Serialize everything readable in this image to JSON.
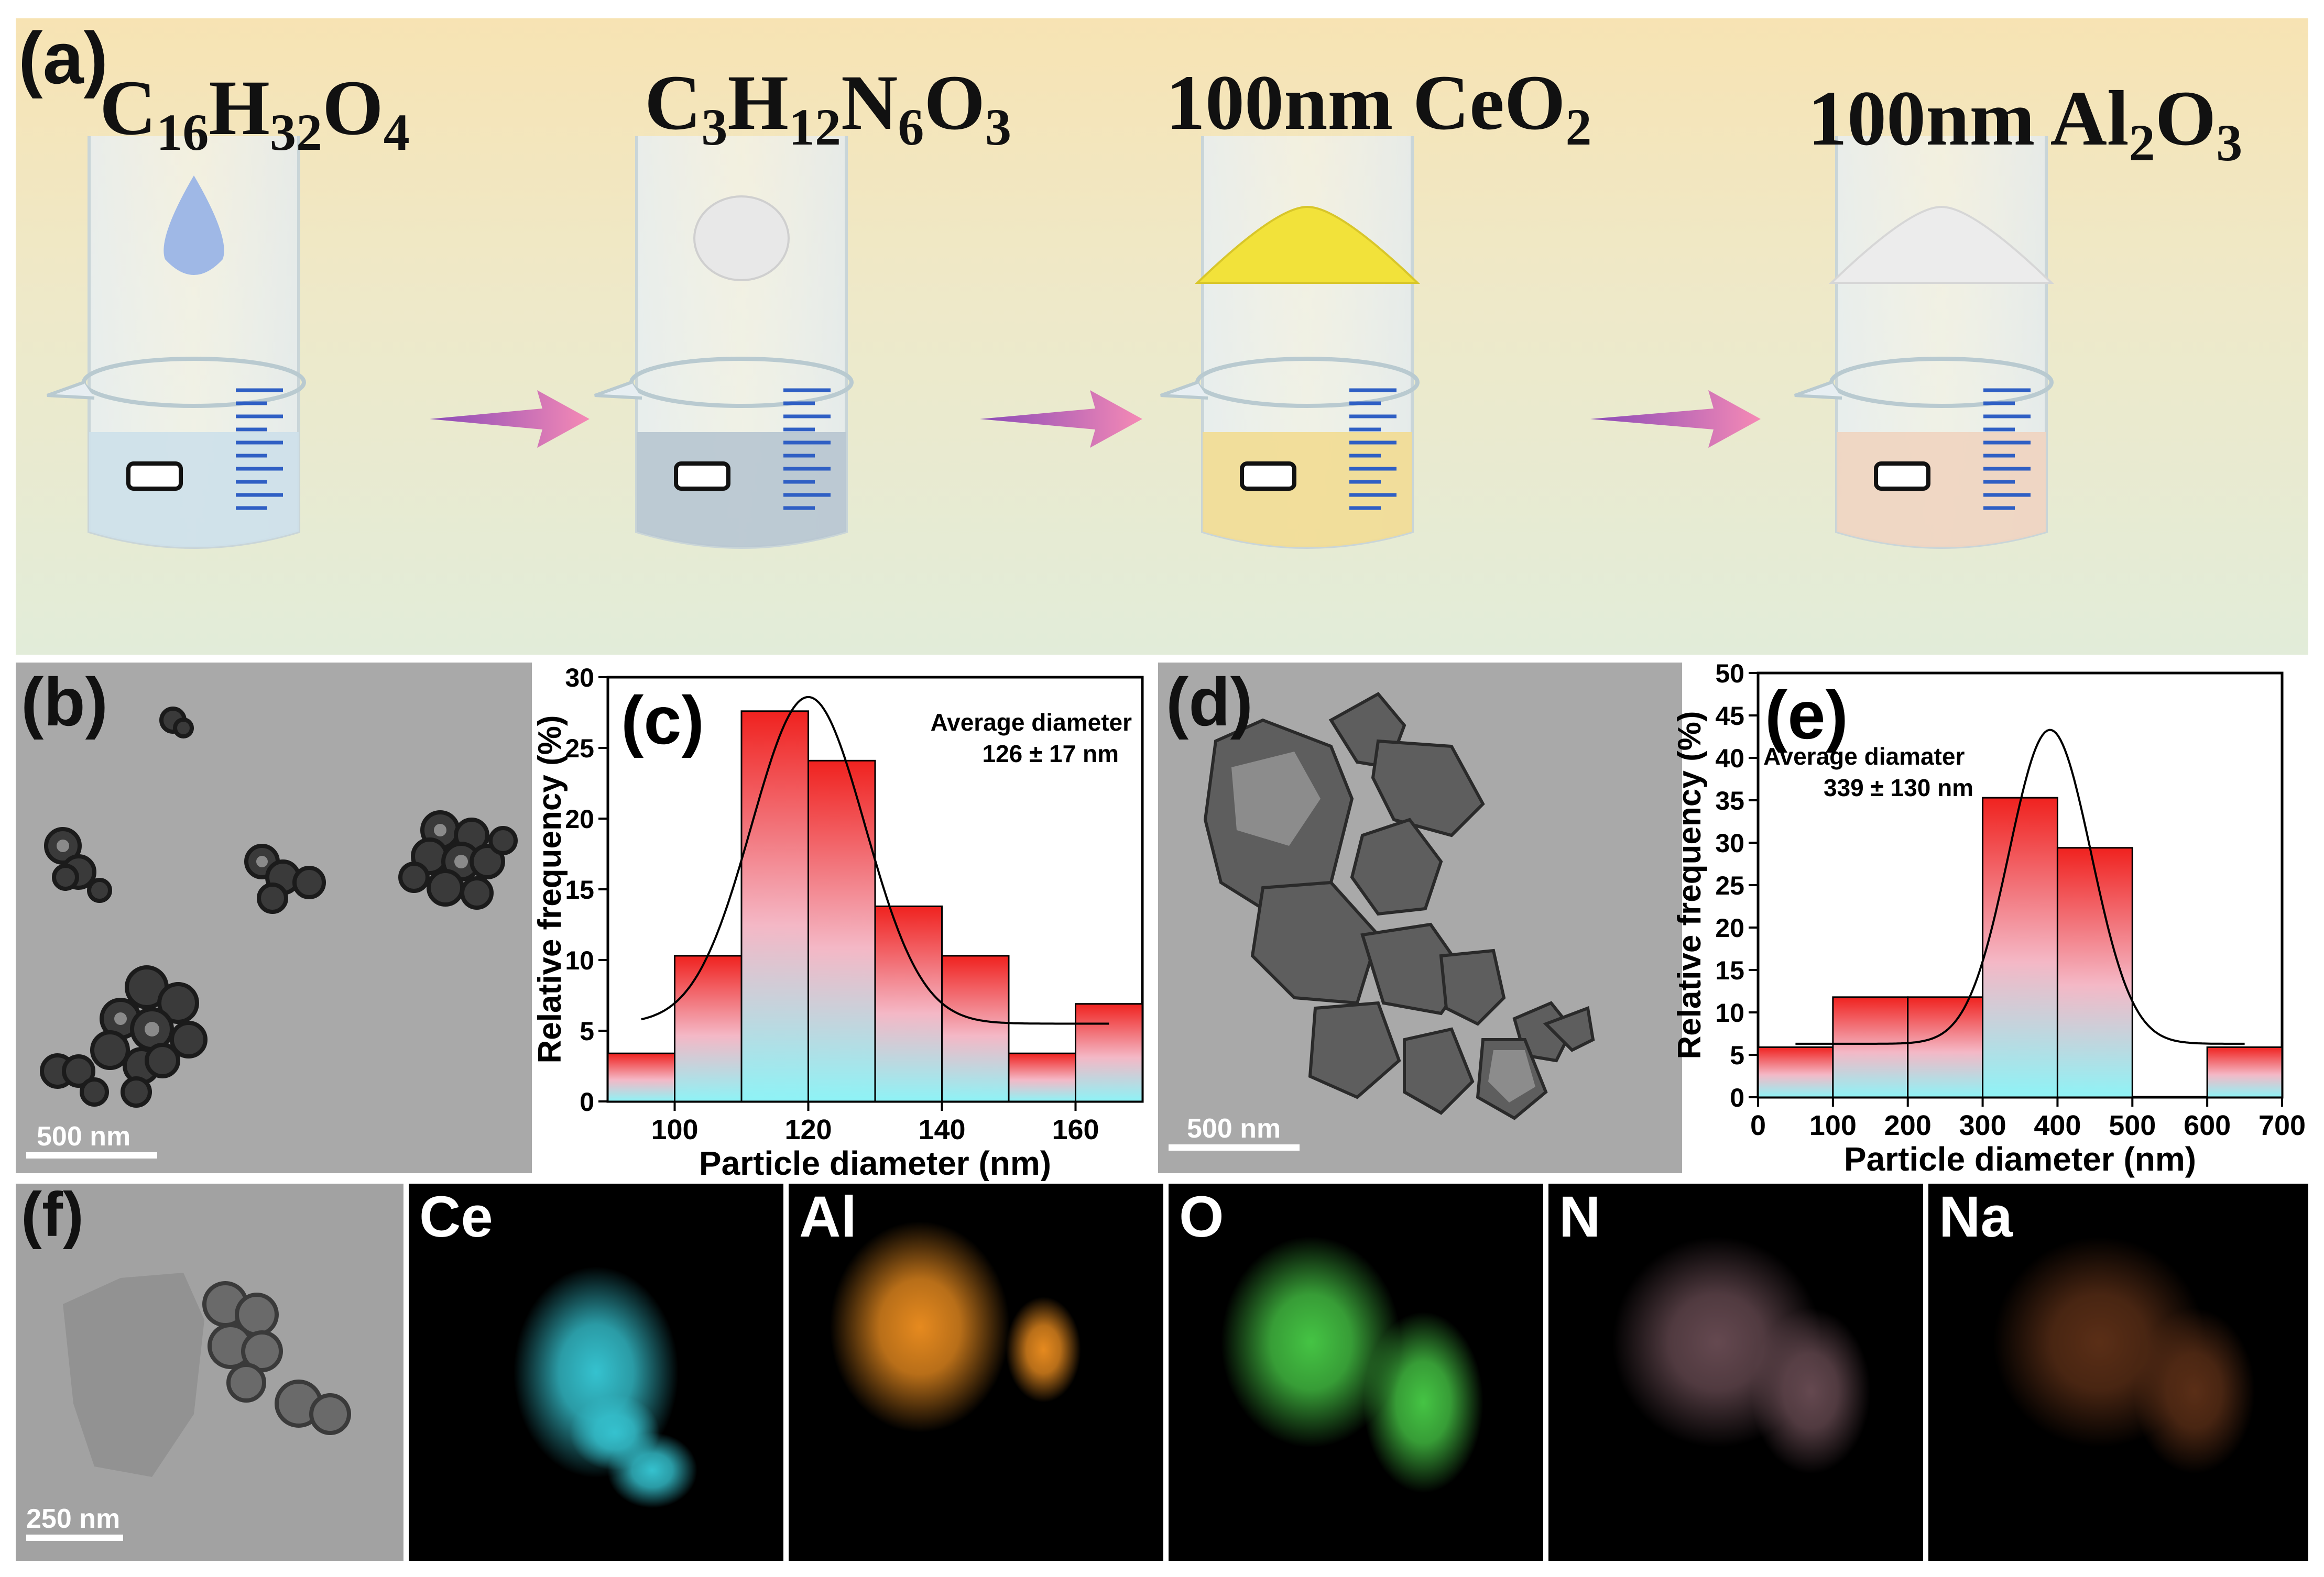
{
  "panel_a": {
    "label": "(a)",
    "steps": [
      {
        "main": "C",
        "parts": [
          [
            "16",
            "sub"
          ],
          [
            "H",
            ""
          ],
          [
            "32",
            "sub"
          ],
          [
            "O",
            ""
          ],
          [
            "4",
            "sub"
          ]
        ]
      },
      {
        "main": "C",
        "parts": [
          [
            "3",
            "sub"
          ],
          [
            "H",
            ""
          ],
          [
            "12",
            "sub"
          ],
          [
            "N",
            ""
          ],
          [
            "6",
            "sub"
          ],
          [
            "O",
            ""
          ],
          [
            "3",
            "sub"
          ]
        ]
      },
      {
        "main": "100nm CeO",
        "parts": [
          [
            "2",
            "sub"
          ]
        ]
      },
      {
        "main": "100nm Al",
        "parts": [
          [
            "2",
            "sub"
          ],
          [
            "O",
            ""
          ],
          [
            "3",
            "sub"
          ]
        ]
      }
    ],
    "liquid_colors": [
      "#cfe0ea",
      "#b9c7d2",
      "#f1dc97",
      "#efd5c2"
    ],
    "powder_colors": [
      "#9fb8e6",
      "#e8e8e8",
      "#f2e23a",
      "#ececec"
    ]
  },
  "panel_b": {
    "label": "(b)",
    "scale": "500 nm"
  },
  "panel_d": {
    "label": "(d)",
    "scale": "500 nm"
  },
  "panel_f": {
    "label": "(f)",
    "scale": "250 nm"
  },
  "eds_maps": [
    {
      "element": "Ce",
      "color": "#35c2cf"
    },
    {
      "element": "Al",
      "color": "#e68a1f"
    },
    {
      "element": "O",
      "color": "#45c444"
    },
    {
      "element": "N",
      "color": "#b88592"
    },
    {
      "element": "Na",
      "color": "#a5552a"
    }
  ],
  "chart_data": [
    {
      "panel": "(c)",
      "type": "bar",
      "xlabel": "Particle diameter (nm)",
      "ylabel": "Relative frequency (%)",
      "annotation": [
        "Average diameter",
        "126 ± 17 nm"
      ],
      "xlim": [
        90,
        170
      ],
      "ylim": [
        0,
        30
      ],
      "xticks": [
        100,
        120,
        140,
        160
      ],
      "yticks": [
        0,
        5,
        10,
        15,
        20,
        25,
        30
      ],
      "bin_width": 10,
      "bins": [
        95,
        105,
        115,
        125,
        135,
        145,
        155,
        165
      ],
      "values": [
        3.4,
        10.3,
        27.6,
        24.1,
        13.8,
        10.3,
        3.4,
        6.9
      ],
      "fit": {
        "type": "gaussian",
        "center": 120,
        "sigma": 8.5,
        "amplitude": 23.1,
        "offset": 5.5,
        "range": [
          95,
          165
        ]
      }
    },
    {
      "panel": "(e)",
      "type": "bar",
      "xlabel": "Particle diameter (nm)",
      "ylabel": "Relative frequency (%)",
      "annotation": [
        "Average diamater",
        "339 ± 130 nm"
      ],
      "xlim": [
        0,
        700
      ],
      "ylim": [
        0,
        50
      ],
      "xticks": [
        0,
        100,
        200,
        300,
        400,
        500,
        600,
        700
      ],
      "yticks": [
        0,
        5,
        10,
        15,
        20,
        25,
        30,
        35,
        40,
        45,
        50
      ],
      "bin_width": 100,
      "bins": [
        50,
        150,
        250,
        350,
        450,
        650
      ],
      "values": [
        5.9,
        11.8,
        11.8,
        35.3,
        29.4,
        5.9
      ],
      "fit": {
        "type": "gaussian",
        "center": 390,
        "sigma": 55,
        "amplitude": 37.0,
        "offset": 6.3,
        "range": [
          50,
          650
        ]
      }
    }
  ]
}
